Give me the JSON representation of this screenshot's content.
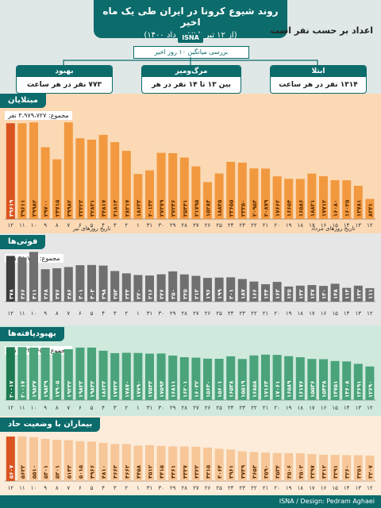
{
  "header": {
    "title": "روند شیوع کرونا در ایران طی یک ماه اخیر",
    "subtitle": "(از ۱۲ تیر تا ۱۲ مرداد ۱۴۰۰)",
    "agency": "ISNA",
    "stat_label": "اعداد بر حسب نفر است",
    "avg_label": "بررسی میانگین ۱۰ روز اخیر"
  },
  "stats": {
    "recovery": {
      "title": "بهبود",
      "value": "۷۷۳ نفر در هر ساعت"
    },
    "death": {
      "title": "مرگ‌ومیر",
      "value": "بین ۱۳ تا ۱۴ نفر در هر ساعت"
    },
    "infection": {
      "title": "ابتلا",
      "value": "۱۳۱۴ نفر در هر ساعت"
    }
  },
  "sections": {
    "cases": {
      "title": "مبتلایان",
      "total": "مجموع: ۳،۹۷۹،۷۲۷ نفر",
      "axis_tir": "تاریخ روزهای تیر",
      "axis_mordad": "تاریخ روزهای مرداد"
    },
    "deaths": {
      "title": "فوتی‌ها",
      "total": "مجموع: ۹۱،۷۸۵ نفر"
    },
    "recovered": {
      "title": "بهبودیافته‌ها",
      "total": "مجموع: ۳،۴۲۴،۶۵۰ نفر"
    },
    "severe": {
      "title": "بیماران با وضعیت حاد"
    }
  },
  "footer": {
    "credit": "ISNA / Design: Pedram Aghaei"
  },
  "colors": {
    "teal": "#0c6b6b",
    "orange": "#f2993f",
    "orange_light": "#f7c799",
    "orange_last": "#d9541e",
    "gray": "#6f6f6f",
    "gray_last": "#3d3d3d",
    "green": "#4aa37a",
    "green_last": "#1d7a50",
    "cases_bg": "#fbd9b5",
    "deaths_bg": "#e6e6e6",
    "recovered_bg": "#cfe9dd",
    "severe_bg": "#fcecd9"
  },
  "chart_data": [
    {
      "type": "bar",
      "title": "مبتلایان",
      "categories": [
        "۱۲",
        "۱۳",
        "۱۴",
        "۱۵",
        "۱۶",
        "۱۷",
        "۱۸",
        "۱۹",
        "۲۰",
        "۲۱",
        "۲۲",
        "۲۳",
        "۲۴",
        "۲۵",
        "۲۶",
        "۲۷",
        "۲۸",
        "۲۹",
        "۳۰",
        "۳۱",
        "۱",
        "۲",
        "۳",
        "۴",
        "۵",
        "۶",
        "۷",
        "۸",
        "۹",
        "۱۰",
        "۱۱",
        "۱۲"
      ],
      "values": [
        8341,
        13781,
        16025,
        16080,
        17712,
        18821,
        16586,
        16654,
        17662,
        20879,
        20953,
        23350,
        23655,
        18845,
        15283,
        21795,
        25441,
        27246,
        27379,
        20132,
        18633,
        28217,
        31814,
        34817,
        32831,
        33423,
        39982,
        24715,
        29700,
        39982,
        39611,
        39619
      ],
      "labels": [
        "۸۳۴۱",
        "۱۳۷۸۱",
        "۱۶۰۲۵",
        "۱۶۰۸۰",
        "۱۷۷۱۲",
        "۱۸۸۲۱",
        "۱۶۵۸۶",
        "۱۶۶۵۴",
        "۱۷۶۶۲",
        "۲۰۸۷۹",
        "۲۰۹۵۳",
        "۲۳۳۵۰",
        "۲۳۶۵۵",
        "۱۸۸۴۵",
        "۱۵۲۸۳",
        "۲۱۷۹۵",
        "۲۵۴۴۱",
        "۲۷۲۴۶",
        "۲۷۳۷۹",
        "۲۰۱۳۲",
        "۱۸۶۳۳",
        "۲۸۲۱۷",
        "۳۱۸۱۴",
        "۳۴۸۱۷",
        "۳۲۸۳۱",
        "۳۳۴۲۳",
        "۳۹۹۸۲",
        "۲۴۷۱۵",
        "۲۹۷۰۰",
        "۳۹۹۸۲",
        "۳۹۶۱۱",
        "۳۹۶۱۹"
      ],
      "ylim": [
        0,
        42000
      ]
    },
    {
      "type": "bar",
      "title": "فوتی‌ها",
      "categories": [
        "۱۲",
        "۱۳",
        "۱۴",
        "۱۵",
        "۱۶",
        "۱۷",
        "۱۸",
        "۱۹",
        "۲۰",
        "۲۱",
        "۲۲",
        "۲۳",
        "۲۴",
        "۲۵",
        "۲۶",
        "۲۷",
        "۲۸",
        "۲۹",
        "۳۰",
        "۳۱",
        "۱",
        "۲",
        "۳",
        "۴",
        "۵",
        "۶",
        "۷",
        "۸",
        "۹",
        "۱۰",
        "۱۱",
        "۱۲"
      ],
      "values": [
        111,
        132,
        114,
        148,
        130,
        137,
        132,
        125,
        163,
        144,
        166,
        187,
        201,
        199,
        196,
        213,
        225,
        250,
        226,
        216,
        220,
        234,
        253,
        298,
        303,
        301,
        286,
        276,
        268,
        411,
        366,
        378
      ],
      "labels": [
        "۱۱۱",
        "۱۳۲",
        "۱۱۴",
        "۱۴۸",
        "۱۳۰",
        "۱۳۷",
        "۱۳۲",
        "۱۲۵",
        "۱۶۳",
        "۱۴۴",
        "۱۶۶",
        "۱۸۷",
        "۲۰۱",
        "۱۹۹",
        "۱۹۶",
        "۲۱۳",
        "۲۲۵",
        "۲۵۰",
        "۲۲۶",
        "۲۱۶",
        "۲۲۰",
        "۲۳۴",
        "۲۵۳",
        "۲۹۸",
        "۳۰۳",
        "۳۰۱",
        "۲۸۶",
        "۲۷۶",
        "۲۶۸",
        "۴۱۱",
        "۳۶۶",
        "۳۷۸"
      ],
      "ylim": [
        0,
        420
      ]
    },
    {
      "type": "bar",
      "title": "بهبودیافته‌ها",
      "categories": [
        "۱۲",
        "۱۳",
        "۱۴",
        "۱۵",
        "۱۶",
        "۱۷",
        "۱۸",
        "۱۹",
        "۲۰",
        "۲۱",
        "۲۲",
        "۲۳",
        "۲۴",
        "۲۵",
        "۲۶",
        "۲۷",
        "۲۸",
        "۲۹",
        "۳۰",
        "۳۱",
        "۱",
        "۲",
        "۳",
        "۴",
        "۵",
        "۶",
        "۷",
        "۸",
        "۹",
        "۱۰",
        "۱۱",
        "۱۲"
      ],
      "values": [
        12690,
        13691,
        14608,
        14751,
        15438,
        15536,
        16176,
        16589,
        17061,
        17163,
        16858,
        15519,
        16538,
        15601,
        15630,
        16032,
        16201,
        16811,
        17594,
        17543,
        17790,
        17870,
        17733,
        18633,
        19833,
        19823,
        19232,
        17905,
        19839,
        19837,
        20017,
        20017
      ],
      "labels": [
        "۱۲۶۹۰",
        "۱۳۶۹۱",
        "۱۴۶۰۸",
        "۱۴۷۵۱",
        "۱۵۴۳۸",
        "۱۵۵۳۶",
        "۱۶۱۷۶",
        "۱۶۵۸۹",
        "۱۷۰۶۱",
        "۱۷۱۶۳",
        "۱۶۸۵۸",
        "۱۵۵۱۹",
        "۱۶۵۳۸",
        "۱۵۶۰۱",
        "۱۵۶۳۰",
        "۱۶۰۳۲",
        "۱۶۲۰۱",
        "۱۶۸۱۱",
        "۱۷۵۹۴",
        "۱۷۵۴۳",
        "۱۷۷۹۰",
        "۱۷۸۷۰",
        "۱۷۷۳۳",
        "۱۸۶۳۳",
        "۱۹۸۳۳",
        "۱۹۸۲۳",
        "۱۹۲۳۲",
        "۱۷۹۰۵",
        "۱۹۸۳۹",
        "۱۹۸۳۷",
        "۲۰۰۱۷",
        "۲۰۰۱۷"
      ],
      "ylim": [
        0,
        21000
      ]
    },
    {
      "type": "bar",
      "title": "بیماران با وضعیت حاد",
      "categories": [
        "۱۲",
        "۱۳",
        "۱۴",
        "۱۵",
        "۱۶",
        "۱۷",
        "۱۸",
        "۱۹",
        "۲۰",
        "۲۱",
        "۲۲",
        "۲۳",
        "۲۴",
        "۲۵",
        "۲۶",
        "۲۷",
        "۲۸",
        "۲۹",
        "۳۰",
        "۳۱",
        "۱",
        "۲",
        "۳",
        "۴",
        "۵",
        "۶",
        "۷",
        "۸",
        "۹",
        "۱۰",
        "۱۱",
        "۱۲"
      ],
      "values": [
        3207,
        3251,
        3260,
        3291,
        3312,
        3397,
        3502,
        3506,
        3534,
        3590,
        3653,
        3739,
        3961,
        4064,
        4215,
        4323,
        4337,
        4361,
        4415,
        4512,
        4458,
        4662,
        4663,
        4810,
        4966,
        5015,
        5143,
        5201,
        5301,
        5510,
        5623,
        5607
      ],
      "labels": [
        "۳۲۰۷",
        "۳۲۵۱",
        "۳۲۶۰",
        "۳۲۹۱",
        "۳۳۱۲",
        "۳۳۹۷",
        "۳۵۰۲",
        "۳۵۰۶",
        "۳۵۳۴",
        "۳۵۹۰",
        "۳۶۵۳",
        "۳۷۳۹",
        "۳۹۶۱",
        "۴۰۶۴",
        "۴۲۱۵",
        "۴۳۲۳",
        "۴۳۳۷",
        "۴۳۶۱",
        "۴۴۱۵",
        "۴۵۱۲",
        "۴۴۵۸",
        "۴۶۶۲",
        "۴۶۶۳",
        "۴۸۱۰",
        "۴۹۶۶",
        "۵۰۱۵",
        "۵۱۴۳",
        "۵۲۰۱",
        "۵۳۰۱",
        "۵۵۱۰",
        "۵۶۲۳",
        "۵۶۰۷"
      ],
      "ylim": [
        0,
        6000
      ]
    }
  ]
}
